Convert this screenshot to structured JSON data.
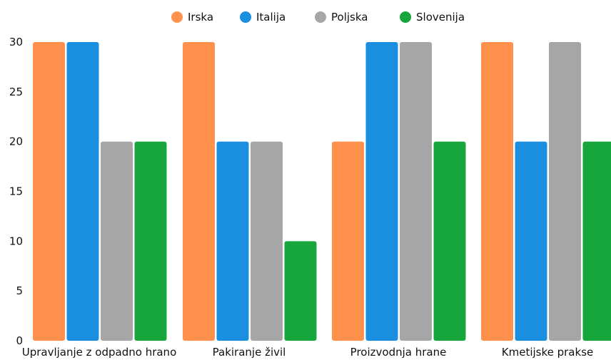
{
  "chart_data": {
    "type": "bar",
    "categories": [
      "Upravljanje z odpadno hrano",
      "Pakiranje živil",
      "Proizvodnja hrane",
      "Kmetijske prakse"
    ],
    "series": [
      {
        "name": "Irska",
        "color": "#FF914D",
        "values": [
          30,
          30,
          20,
          30
        ]
      },
      {
        "name": "Italija",
        "color": "#1B8FDF",
        "values": [
          30,
          20,
          30,
          20
        ]
      },
      {
        "name": "Poljska",
        "color": "#A6A6A6",
        "values": [
          20,
          20,
          30,
          30
        ]
      },
      {
        "name": "Slovenija",
        "color": "#17A63C",
        "values": [
          20,
          10,
          20,
          20
        ]
      }
    ],
    "yticks": [
      "0",
      "5",
      "10",
      "15",
      "20",
      "25",
      "30"
    ],
    "ylim": [
      0,
      30
    ],
    "grid": false,
    "legend_position": "top"
  }
}
